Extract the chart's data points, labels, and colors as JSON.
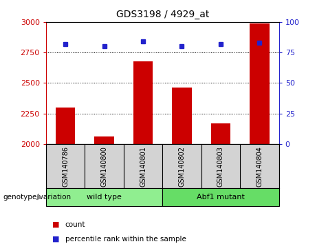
{
  "title": "GDS3198 / 4929_at",
  "samples": [
    "GSM140786",
    "GSM140800",
    "GSM140801",
    "GSM140802",
    "GSM140803",
    "GSM140804"
  ],
  "counts": [
    2300,
    2060,
    2680,
    2460,
    2170,
    2990
  ],
  "percentiles": [
    82,
    80,
    84,
    80,
    82,
    83
  ],
  "ylim_left": [
    2000,
    3000
  ],
  "ylim_right": [
    0,
    100
  ],
  "yticks_left": [
    2000,
    2250,
    2500,
    2750,
    3000
  ],
  "yticks_right": [
    0,
    25,
    50,
    75,
    100
  ],
  "hlines": [
    2250,
    2500,
    2750
  ],
  "bar_color": "#cc0000",
  "dot_color": "#2222cc",
  "bar_width": 0.5,
  "group_label": "genotype/variation",
  "wt_label": "wild type",
  "mut_label": "Abf1 mutant",
  "wt_color": "#90ee90",
  "mut_color": "#66dd66",
  "label_bg": "#d3d3d3",
  "legend_count": "count",
  "legend_pct": "percentile rank within the sample",
  "bg_color": "#ffffff",
  "plot_bg": "#ffffff",
  "axis_color_left": "#cc0000",
  "axis_color_right": "#2222cc",
  "title_fontsize": 10,
  "tick_fontsize": 8,
  "bar_fontsize": 7,
  "group_fontsize": 8
}
